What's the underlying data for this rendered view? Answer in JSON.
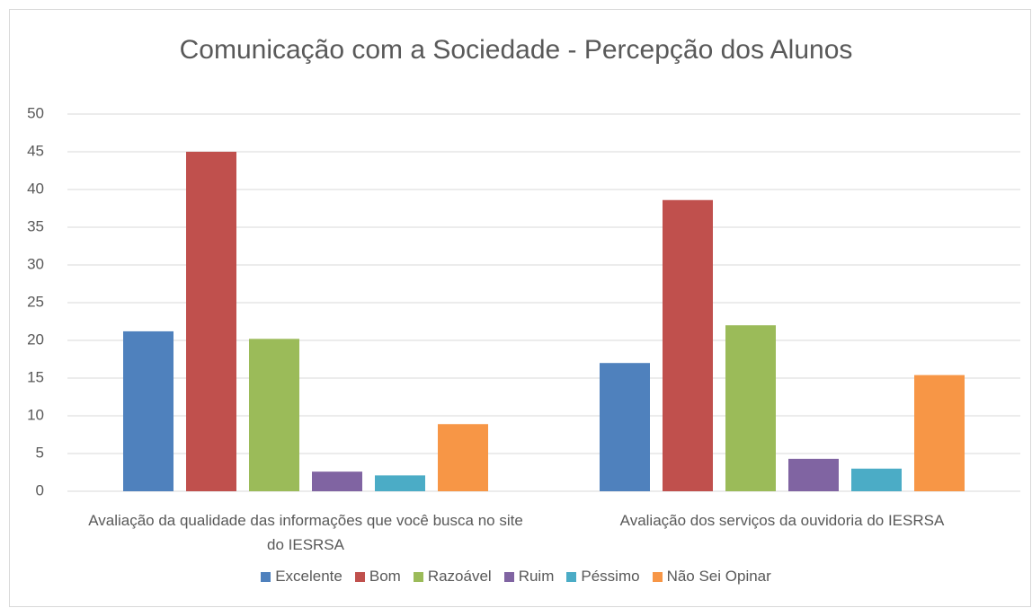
{
  "chart_data": {
    "type": "bar",
    "title": "Comunicação com a Sociedade - Percepção dos Alunos",
    "categories": [
      "Avaliação da qualidade das informações que você busca no site do IESRSA",
      "Avaliação dos serviços da ouvidoria do IESRSA"
    ],
    "series": [
      {
        "name": "Excelente",
        "color": "#4f81bd",
        "values": [
          21.2,
          17.0
        ]
      },
      {
        "name": "Bom",
        "color": "#c0504d",
        "values": [
          45.0,
          38.6
        ]
      },
      {
        "name": "Razoável",
        "color": "#9bbb59",
        "values": [
          20.2,
          22.0
        ]
      },
      {
        "name": "Ruim",
        "color": "#8064a2",
        "values": [
          2.6,
          4.3
        ]
      },
      {
        "name": "Péssimo",
        "color": "#4bacc6",
        "values": [
          2.1,
          3.0
        ]
      },
      {
        "name": "Não Sei Opinar",
        "color": "#f79646",
        "values": [
          8.9,
          15.4
        ]
      }
    ],
    "ylim": [
      0,
      50
    ],
    "yticks": [
      0,
      5,
      10,
      15,
      20,
      25,
      30,
      35,
      40,
      45,
      50
    ],
    "grid": true
  }
}
